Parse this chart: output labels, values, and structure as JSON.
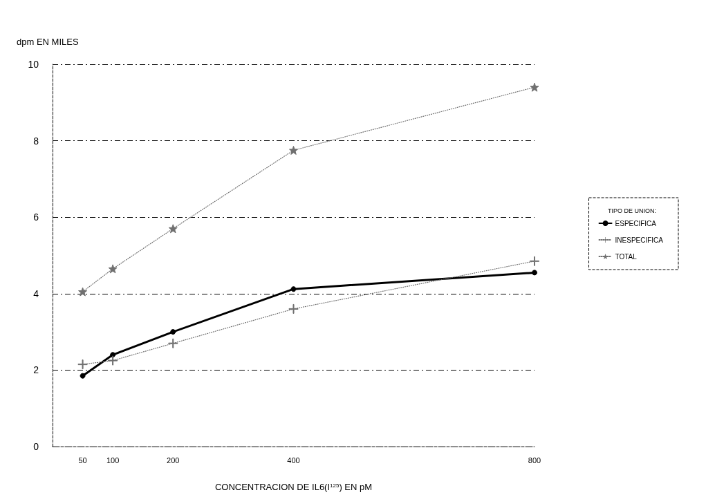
{
  "chart_data": {
    "type": "line",
    "xlabel": "CONCENTRACION DE IL6(I$^{125}$) EN pM",
    "ylabel": "dpm EN MILES",
    "legend_title": "TIPO DE UNION:",
    "x": [
      50,
      100,
      200,
      400,
      800
    ],
    "xlim": [
      0,
      800
    ],
    "xticks": [
      50,
      100,
      200,
      400,
      800
    ],
    "ylim": [
      0,
      10
    ],
    "yticks": [
      0,
      2,
      4,
      6,
      8,
      10
    ],
    "grid": "y",
    "legend": "right",
    "series": [
      {
        "name": "ESPECIFICA",
        "color": "#000000",
        "marker": "circle",
        "line_style": "solid",
        "values": [
          1.85,
          2.4,
          3.0,
          4.12,
          4.55
        ]
      },
      {
        "name": "INESPECIFICA",
        "color": "#707070",
        "marker": "cross",
        "line_style": "dotted",
        "values": [
          2.15,
          2.25,
          2.7,
          3.6,
          4.85
        ]
      },
      {
        "name": "TOTAL",
        "color": "#707070",
        "marker": "star",
        "line_style": "dotted",
        "values": [
          4.05,
          4.65,
          5.7,
          7.75,
          9.4
        ]
      }
    ]
  }
}
